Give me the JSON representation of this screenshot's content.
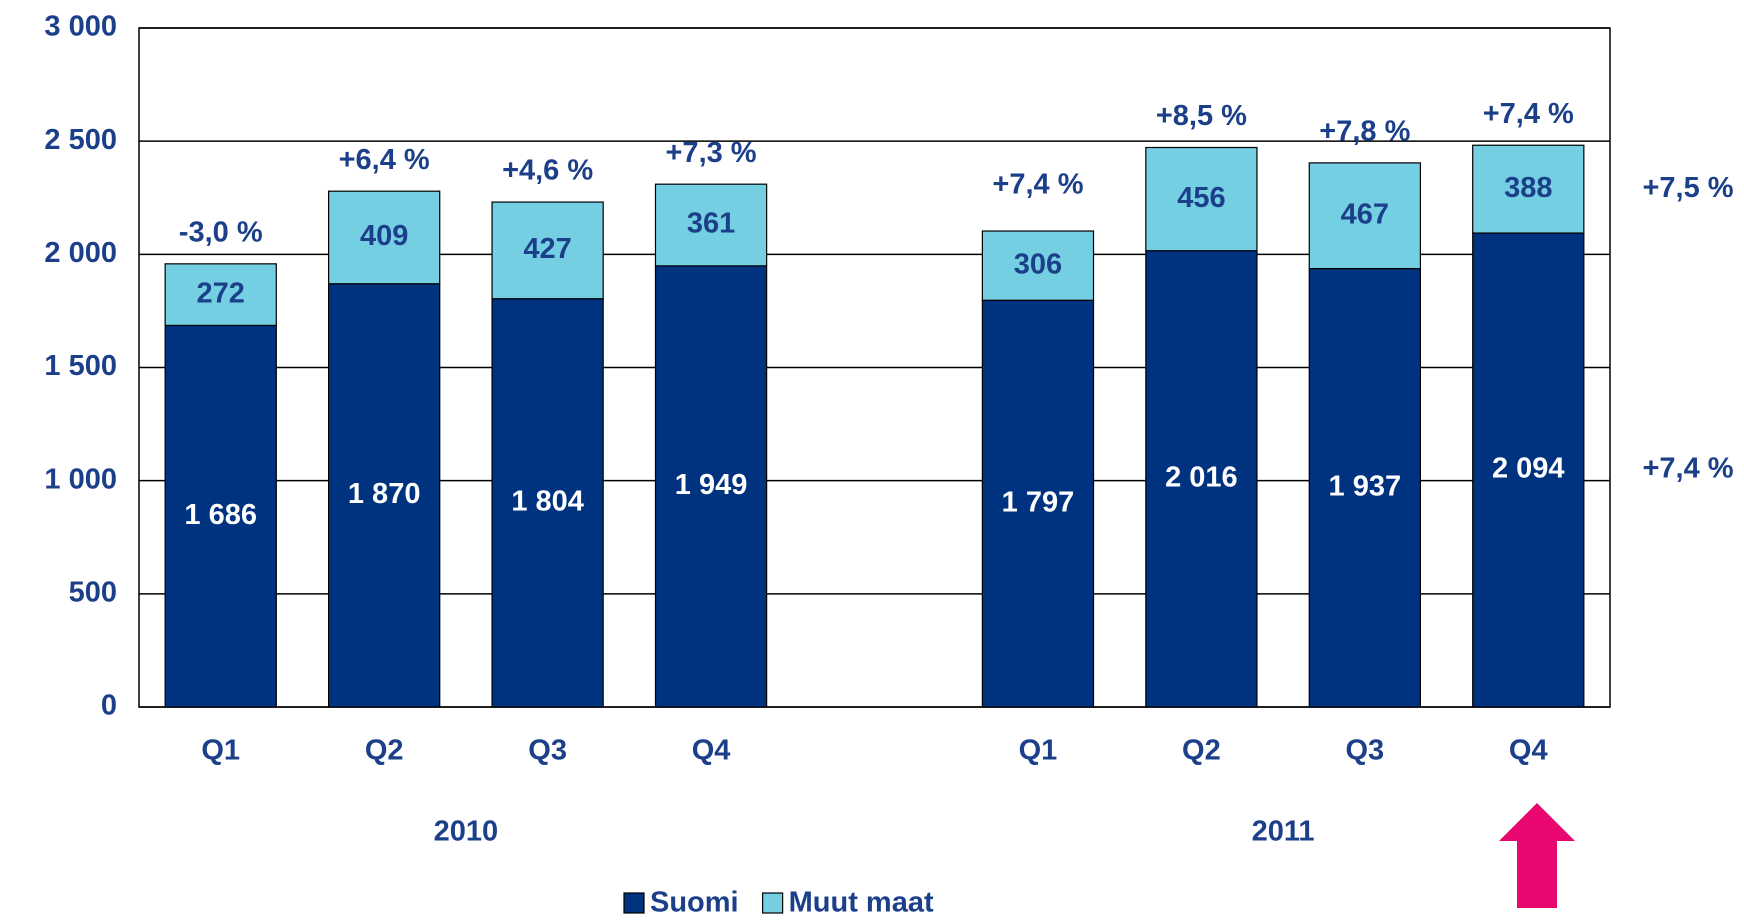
{
  "chart_data": {
    "type": "stacked_bar",
    "categories": [
      "Q1",
      "Q2",
      "Q3",
      "Q4",
      null,
      "Q1",
      "Q2",
      "Q3",
      "Q4"
    ],
    "groups": [
      "2010",
      "2011"
    ],
    "series": [
      {
        "name": "Suomi",
        "color": "#00337f",
        "values": [
          1686,
          1870,
          1804,
          1949,
          null,
          1797,
          2016,
          1937,
          2094
        ],
        "value_labels": [
          "1 686",
          "1 870",
          "1 804",
          "1 949",
          null,
          "1 797",
          "2 016",
          "1 937",
          "2 094"
        ]
      },
      {
        "name": "Muut maat",
        "color": "#74cfe2",
        "values": [
          272,
          409,
          427,
          361,
          null,
          306,
          456,
          467,
          388
        ]
      }
    ],
    "annotations": [
      "-3,0 %",
      "+6,4 %",
      "+4,6 %",
      "+7,3 %",
      null,
      "+7,4 %",
      "+8,5 %",
      "+7,8 %",
      "+7,4 %"
    ],
    "side_annotations": [
      "+7,5 %",
      "+7,4 %"
    ],
    "ylim": [
      0,
      3000
    ],
    "yticks": [
      0,
      500,
      {
        "value": 1000,
        "label": "1 000"
      },
      {
        "value": 1500,
        "label": "1 500"
      },
      {
        "value": 2000,
        "label": "2 000"
      },
      {
        "value": 2500,
        "label": "2 500"
      },
      {
        "value": 3000,
        "label": "3 000"
      }
    ],
    "grid": true
  }
}
